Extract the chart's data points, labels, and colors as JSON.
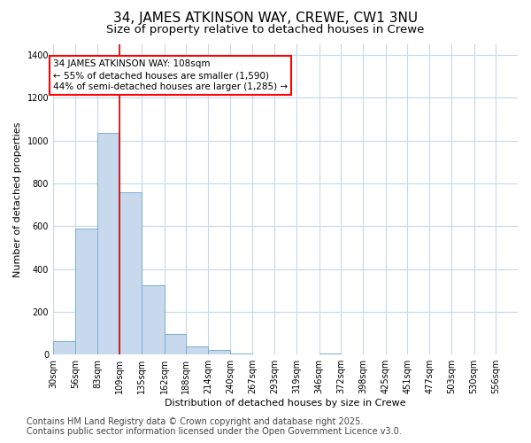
{
  "title1": "34, JAMES ATKINSON WAY, CREWE, CW1 3NU",
  "title2": "Size of property relative to detached houses in Crewe",
  "xlabel": "Distribution of detached houses by size in Crewe",
  "ylabel": "Number of detached properties",
  "bar_color": "#c9d9ed",
  "bar_edge_color": "#7aaed6",
  "background_color": "#ffffff",
  "plot_bg_color": "#ffffff",
  "grid_color": "#c8d8e8",
  "annotation_text": "34 JAMES ATKINSON WAY: 108sqm\n← 55% of detached houses are smaller (1,590)\n44% of semi-detached houses are larger (1,285) →",
  "vline_x": 109,
  "vline_color": "#cc0000",
  "categories": [
    "30sqm",
    "56sqm",
    "83sqm",
    "109sqm",
    "135sqm",
    "162sqm",
    "188sqm",
    "214sqm",
    "240sqm",
    "267sqm",
    "293sqm",
    "319sqm",
    "346sqm",
    "372sqm",
    "398sqm",
    "425sqm",
    "451sqm",
    "477sqm",
    "503sqm",
    "530sqm",
    "556sqm"
  ],
  "bin_edges": [
    30,
    56,
    83,
    109,
    135,
    162,
    188,
    214,
    240,
    267,
    293,
    319,
    346,
    372,
    398,
    425,
    451,
    477,
    503,
    530,
    556,
    582
  ],
  "values": [
    65,
    590,
    1035,
    760,
    325,
    95,
    40,
    20,
    5,
    0,
    0,
    0,
    5,
    0,
    0,
    0,
    0,
    0,
    0,
    0,
    0
  ],
  "ylim": [
    0,
    1450
  ],
  "yticks": [
    0,
    200,
    400,
    600,
    800,
    1000,
    1200,
    1400
  ],
  "footer": "Contains HM Land Registry data © Crown copyright and database right 2025.\nContains public sector information licensed under the Open Government Licence v3.0.",
  "title_fontsize": 11,
  "subtitle_fontsize": 9.5,
  "axis_fontsize": 8,
  "tick_fontsize": 7,
  "footer_fontsize": 7,
  "annot_fontsize": 7.5
}
